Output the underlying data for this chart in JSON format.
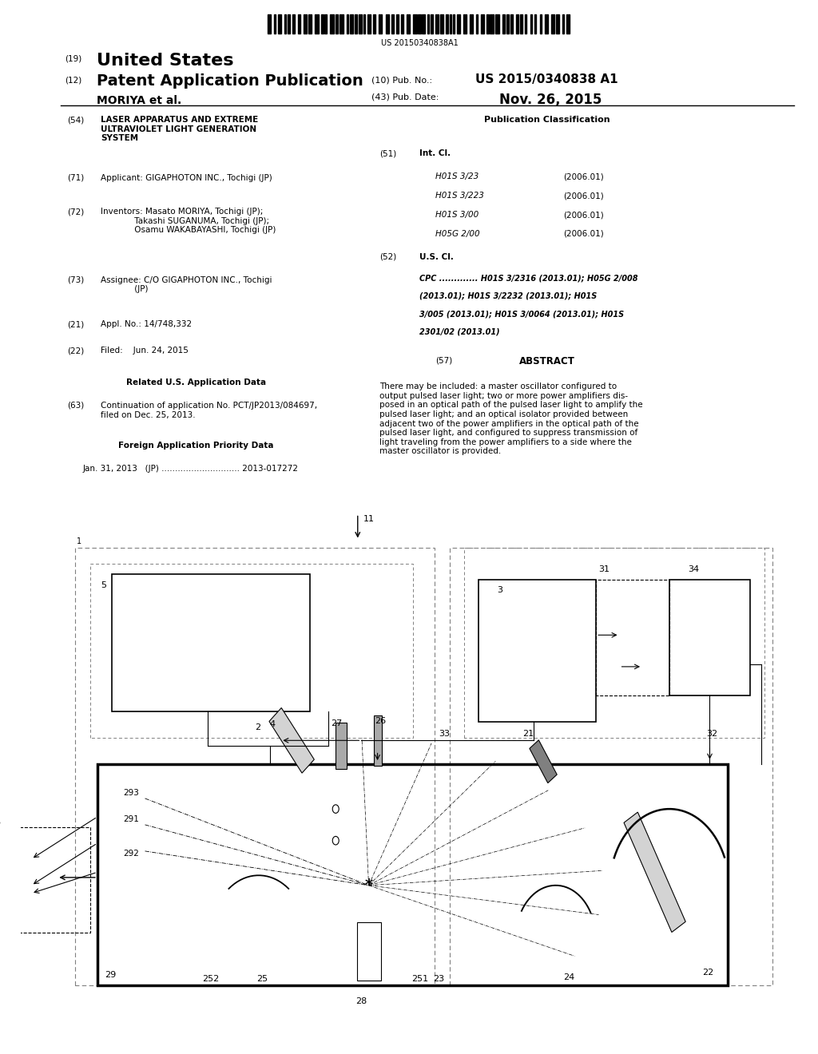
{
  "bg_color": "#ffffff",
  "barcode_text": "US 20150340838A1",
  "title_19": "(19)",
  "title_us": "United States",
  "title_12": "(12)",
  "title_pat": "Patent Application Publication",
  "title_moriya": "MORIYA et al.",
  "pub_no_label": "(10) Pub. No.:",
  "pub_no": "US 2015/0340838 A1",
  "pub_date_label": "(43) Pub. Date:",
  "pub_date": "Nov. 26, 2015",
  "field_54_num": "(54)",
  "field_54_text": "LASER APPARATUS AND EXTREME\nULTRAVIOLET LIGHT GENERATION\nSYSTEM",
  "field_71_num": "(71)",
  "field_71_text": "Applicant: GIGAPHOTON INC., Tochigi (JP)",
  "field_72_num": "(72)",
  "field_72_text": "Inventors: Masato MORIYA, Tochigi (JP);\n             Takashi SUGANUMA, Tochigi (JP);\n             Osamu WAKABAYASHI, Tochigi (JP)",
  "field_73_num": "(73)",
  "field_73_text": "Assignee: C/O GIGAPHOTON INC., Tochigi\n             (JP)",
  "field_21_num": "(21)",
  "field_21_text": "Appl. No.: 14/748,332",
  "field_22_num": "(22)",
  "field_22_text": "Filed:    Jun. 24, 2015",
  "related_title": "Related U.S. Application Data",
  "field_63_num": "(63)",
  "field_63_text": "Continuation of application No. PCT/JP2013/084697,\nfiled on Dec. 25, 2013.",
  "foreign_title": "Foreign Application Priority Data",
  "field_30_text": "Jan. 31, 2013   (JP) ............................. 2013-017272",
  "pub_class_title": "Publication Classification",
  "field_51_num": "(51)",
  "field_51_text": "Int. Cl.",
  "int_cl_lines": [
    [
      "H01S 3/23",
      "(2006.01)"
    ],
    [
      "H01S 3/223",
      "(2006.01)"
    ],
    [
      "H01S 3/00",
      "(2006.01)"
    ],
    [
      "H05G 2/00",
      "(2006.01)"
    ]
  ],
  "field_52_num": "(52)",
  "field_52_text": "U.S. Cl.",
  "cpc_lines": [
    "CPC ............. H01S 3/2316 (2013.01); H05G 2/008",
    "(2013.01); H01S 3/2232 (2013.01); H01S",
    "3/005 (2013.01); H01S 3/0064 (2013.01); H01S",
    "2301/02 (2013.01)"
  ],
  "abstract_num": "(57)",
  "abstract_title": "ABSTRACT",
  "abstract_text": "There may be included: a master oscillator configured to\noutput pulsed laser light; two or more power amplifiers dis-\nposed in an optical path of the pulsed laser light to amplify the\npulsed laser light; and an optical isolator provided between\nadjacent two of the power amplifiers in the optical path of the\npulsed laser light, and configured to suppress transmission of\nlight traveling from the power amplifiers to a side where the\nmaster oscillator is provided."
}
